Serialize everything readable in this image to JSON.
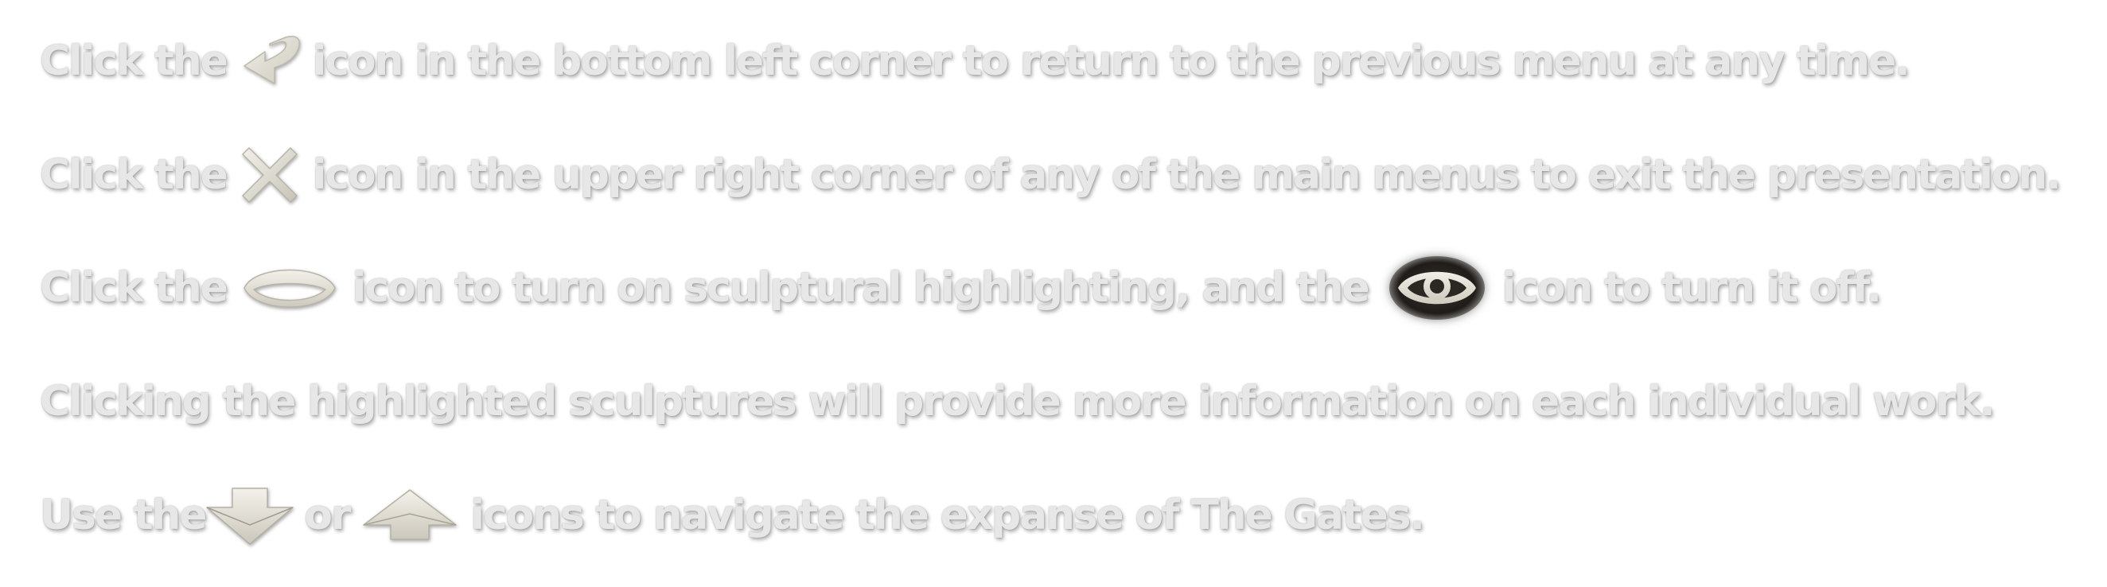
{
  "instructions": {
    "line1": {
      "before": "Click the",
      "icon": "back-arrow-icon",
      "after": "icon in the bottom left corner to return to the previous menu at any time."
    },
    "line2": {
      "before": "Click the",
      "icon": "close-icon",
      "after": "icon in the upper right corner of any of the main menus to exit the presentation."
    },
    "line3": {
      "before": "Click the",
      "icon1": "eye-closed-icon",
      "middle": "icon to turn on sculptural highlighting, and the",
      "icon2": "eye-open-icon",
      "after": "icon to turn it off."
    },
    "line4": {
      "text": "Clicking the highlighted sculptures will provide more information on each individual work."
    },
    "line5": {
      "before": "Use the",
      "icon1": "arrow-down-icon",
      "middle": "or",
      "icon2": "arrow-up-icon",
      "after": "icons to navigate the expanse of The Gates."
    }
  },
  "colors": {
    "text": "#e7e7e7",
    "icon_metal": "#e4e2da",
    "eye_dark": "#2a2723"
  }
}
